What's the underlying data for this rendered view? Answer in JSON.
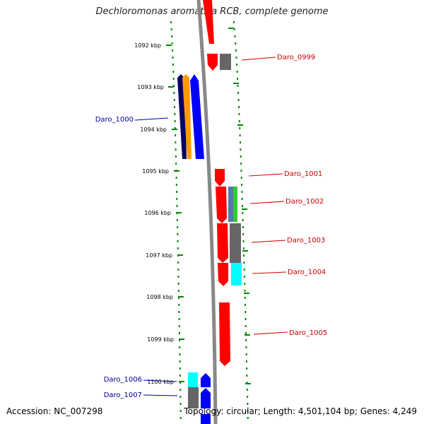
{
  "title": "Dechloromonas aromatica RCB, complete genome",
  "footer": {
    "accession": "Accession: NC_007298",
    "summary": "Topology: circular; Length: 4,501,104 bp; Genes: 4,249"
  },
  "ticks": [
    "1092 kbp",
    "1093 kbp",
    "1094 kbp",
    "1095 kbp",
    "1096 kbp",
    "1097 kbp",
    "1098 kbp",
    "1099 kbp",
    "1100 kbp"
  ],
  "colors": {
    "forward_gene": "#ff0000",
    "reverse_gene": "#0000ff",
    "other_gene": "#666666",
    "cyan_feature": "#00ffff",
    "orange_feature": "#ff9900",
    "navy_feature": "#000066",
    "green_feature": "#33cc33",
    "steel_feature": "#5577aa",
    "gc_dots": "#008800",
    "backbone": "#888888",
    "red_label": "#cc0000",
    "blue_label": "#000099"
  },
  "genes_right": [
    "Daro_0999",
    "Daro_1001",
    "Daro_1002",
    "Daro_1003",
    "Daro_1004",
    "Daro_1005"
  ],
  "genes_left": [
    "Daro_1000",
    "Daro_1006",
    "Daro_1007"
  ]
}
